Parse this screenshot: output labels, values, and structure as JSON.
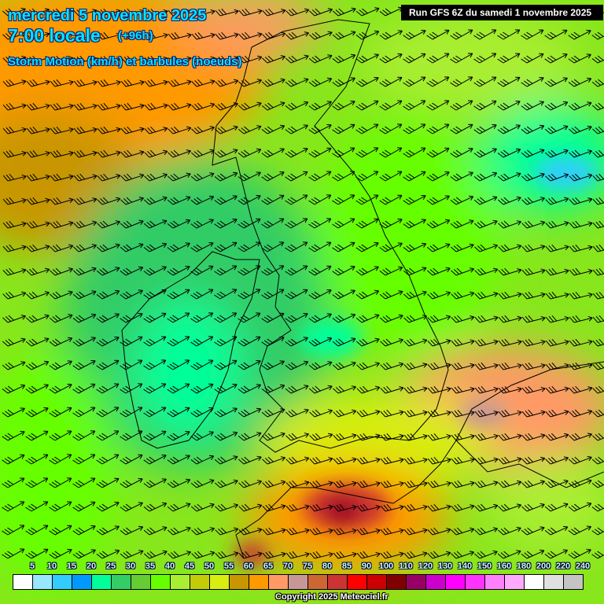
{
  "header": {
    "date": "mercredi 5 novembre 2025",
    "time": "7:00 locale",
    "lead": "(+96h)",
    "parameter": "Storm Motion (km/h) et barbules (noeuds)",
    "run": "Run GFS 6Z du samedi 1 novembre 2025"
  },
  "legend": {
    "labels": [
      "5",
      "10",
      "15",
      "20",
      "25",
      "30",
      "35",
      "40",
      "45",
      "50",
      "55",
      "60",
      "65",
      "70",
      "75",
      "80",
      "85",
      "90",
      "100",
      "110",
      "120",
      "130",
      "140",
      "150",
      "160",
      "180",
      "200",
      "220",
      "240"
    ],
    "colors": [
      "#ffffff",
      "#99e6ff",
      "#33ccff",
      "#0099ff",
      "#00ff99",
      "#33cc66",
      "#66cc33",
      "#66ff00",
      "#aaee33",
      "#c4cc0a",
      "#d8ee10",
      "#c89600",
      "#ff9900",
      "#ff9966",
      "#c89696",
      "#cc6633",
      "#cc3333",
      "#ff0000",
      "#cc0000",
      "#800000",
      "#990066",
      "#cc00cc",
      "#ff00ff",
      "#ff33ff",
      "#ff80ff",
      "#ffaaff",
      "#ffffff",
      "#e0e0e0",
      "#c4c4c4"
    ]
  },
  "copyright": "Copyright 2025 Meteociel.fr"
}
